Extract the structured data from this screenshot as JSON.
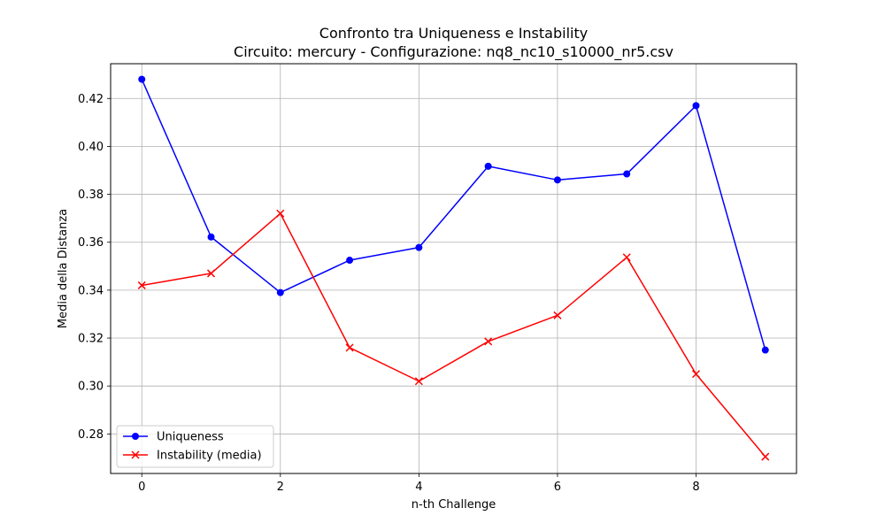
{
  "chart_data": {
    "type": "line",
    "title": "Confronto tra Uniqueness e Instability",
    "subtitle": "Circuito: mercury - Configurazione: nq8_nc10_s10000_nr5.csv",
    "xlabel": "n-th Challenge",
    "ylabel": "Media della Distanza",
    "x": [
      0,
      1,
      2,
      3,
      4,
      5,
      6,
      7,
      8,
      9
    ],
    "xlim": [
      -0.45,
      9.45
    ],
    "ylim": [
      0.2635,
      0.4345
    ],
    "x_ticks": [
      0,
      2,
      4,
      6,
      8
    ],
    "y_ticks": [
      0.28,
      0.3,
      0.32,
      0.34,
      0.36,
      0.38,
      0.4,
      0.42
    ],
    "y_tick_labels": [
      "0.28",
      "0.30",
      "0.32",
      "0.34",
      "0.36",
      "0.38",
      "0.40",
      "0.42"
    ],
    "grid": true,
    "legend_position": "lower-left",
    "series": [
      {
        "name": "Uniqueness",
        "color": "#0000ff",
        "marker": "circle",
        "values": [
          0.428,
          0.3622,
          0.339,
          0.3525,
          0.3578,
          0.3917,
          0.386,
          0.3885,
          0.417,
          0.315
        ]
      },
      {
        "name": "Instability (media)",
        "color": "#ff0000",
        "marker": "x",
        "values": [
          0.342,
          0.347,
          0.372,
          0.316,
          0.302,
          0.3186,
          0.3295,
          0.3537,
          0.305,
          0.2705
        ]
      }
    ]
  }
}
